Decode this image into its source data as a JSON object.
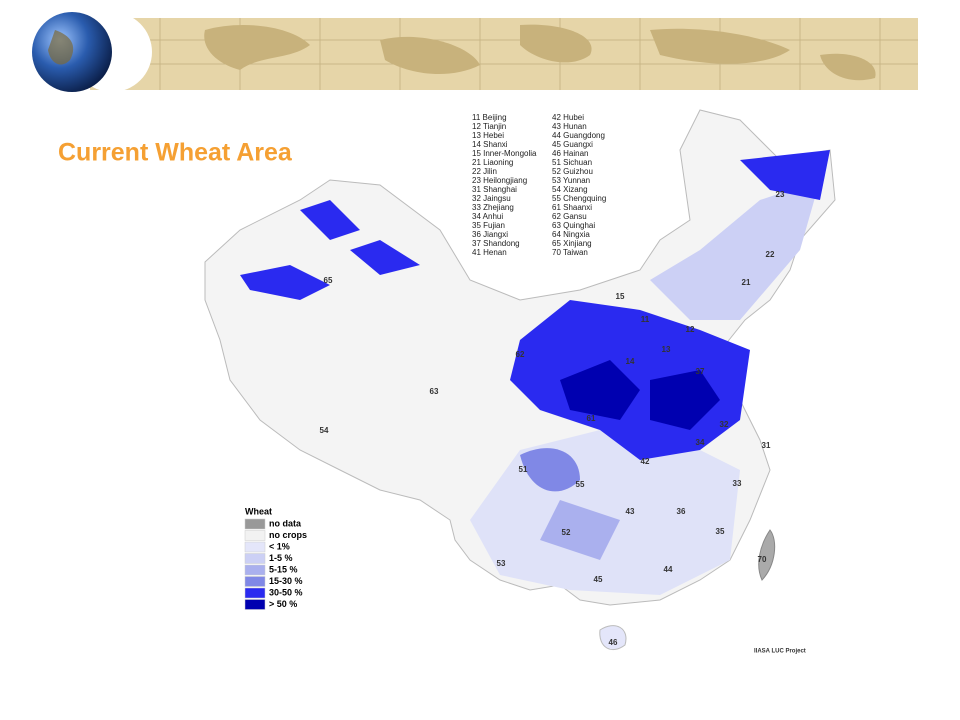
{
  "title": "Current Wheat Area",
  "province_key": {
    "column_1": [
      "11 Beijing",
      "12 Tianjin",
      "13 Hebei",
      "14 Shanxi",
      "15 Inner-Mongolia",
      "21 Liaoning",
      "22 Jilin",
      "23 Heilongjiang",
      "31 Shanghai",
      "32 Jaingsu",
      "33 Zhejiang",
      "34 Anhui",
      "35 Fujian",
      "36 Jiangxi",
      "37 Shandong",
      "41 Henan"
    ],
    "column_2": [
      "42 Hubei",
      "43 Hunan",
      "44 Guangdong",
      "45 Guangxi",
      "46 Hainan",
      "51 Sichuan",
      "52 Guizhou",
      "53 Yunnan",
      "54 Xizang",
      "55 Chengquing",
      "61 Shaanxi",
      "62 Gansu",
      "63 Quinghai",
      "64 Ningxia",
      "65 Xinjiang",
      "70 Taiwan"
    ]
  },
  "legend": {
    "title": "Wheat",
    "items": [
      {
        "label": "no data",
        "color": "#999999"
      },
      {
        "label": "no crops",
        "color": "#f2f2f2"
      },
      {
        "label": "< 1%",
        "color": "#e4e6fa"
      },
      {
        "label": "1-5 %",
        "color": "#ccd0f5"
      },
      {
        "label": "5-15 %",
        "color": "#aab0ee"
      },
      {
        "label": "15-30 %",
        "color": "#8088e6"
      },
      {
        "label": "30-50 %",
        "color": "#2a2af0"
      },
      {
        "label": "> 50 %",
        "color": "#0000b0"
      }
    ]
  },
  "map_labels": [
    "65",
    "63",
    "54",
    "23",
    "22",
    "21",
    "15",
    "11",
    "12",
    "13",
    "14",
    "37",
    "62",
    "61",
    "32",
    "34",
    "31",
    "42",
    "51",
    "55",
    "33",
    "43",
    "36",
    "52",
    "35",
    "53",
    "44",
    "45",
    "70",
    "46"
  ],
  "credit": "IIASA LUC Project"
}
